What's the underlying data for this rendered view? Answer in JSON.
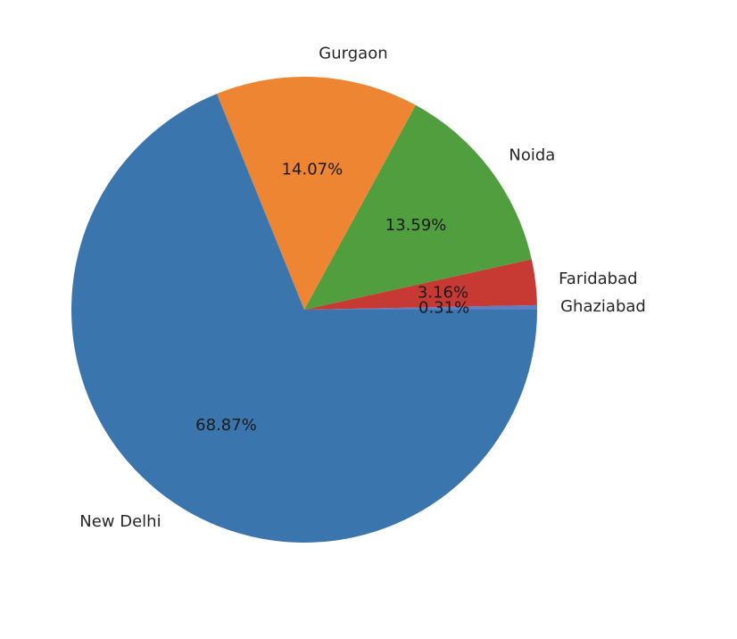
{
  "chart_data": {
    "type": "pie",
    "title": "",
    "categories": [
      "Ghaziabad",
      "Faridabad",
      "Noida",
      "Gurgaon",
      "New Delhi"
    ],
    "values": [
      0.31,
      3.16,
      13.59,
      14.07,
      68.87
    ],
    "percent_labels": [
      "0.31%",
      "3.16%",
      "13.59%",
      "14.07%",
      "68.87%"
    ],
    "colors": [
      "#5b7fc2",
      "#c73a34",
      "#509e3e",
      "#ee8532",
      "#3b75ae"
    ],
    "start_angle_deg": 0,
    "direction": "counterclockwise",
    "legend": "none"
  }
}
